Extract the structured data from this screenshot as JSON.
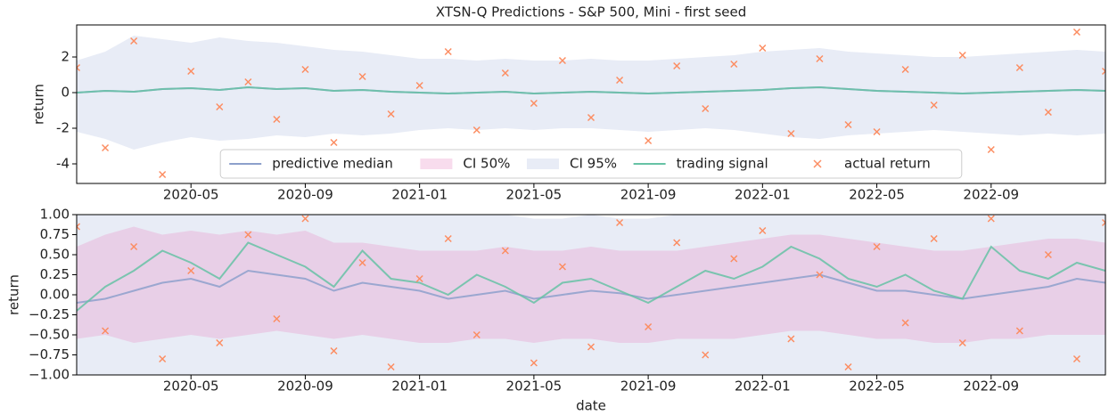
{
  "chart_data": [
    {
      "type": "line",
      "title": "XTSN-Q Predictions - S&P 500, Mini - first seed",
      "ylabel": "return",
      "x": [
        "2020-01",
        "2020-02",
        "2020-03",
        "2020-04",
        "2020-05",
        "2020-06",
        "2020-07",
        "2020-08",
        "2020-09",
        "2020-10",
        "2020-11",
        "2020-12",
        "2021-01",
        "2021-02",
        "2021-03",
        "2021-04",
        "2021-05",
        "2021-06",
        "2021-07",
        "2021-08",
        "2021-09",
        "2021-10",
        "2021-11",
        "2021-12",
        "2022-01",
        "2022-02",
        "2022-03",
        "2022-04",
        "2022-05",
        "2022-06",
        "2022-07",
        "2022-08",
        "2022-09",
        "2022-10",
        "2022-11",
        "2022-12",
        "2023-01"
      ],
      "xlim": [
        "2020-01",
        "2023-01"
      ],
      "xticks": [
        "2020-05",
        "2020-09",
        "2021-01",
        "2021-05",
        "2021-09",
        "2022-01",
        "2022-05",
        "2022-09"
      ],
      "ylim": [
        -5.1,
        3.8
      ],
      "yticks": [
        -4,
        -2,
        0,
        2
      ],
      "legend": "lower center",
      "series": [
        {
          "name": "predictive median",
          "type": "line",
          "color": "#8da0cb",
          "values": [
            0,
            0.1,
            0.05,
            0.2,
            0.25,
            0.15,
            0.3,
            0.2,
            0.25,
            0.1,
            0.15,
            0.05,
            0,
            -0.05,
            0,
            0.05,
            -0.05,
            0,
            0.05,
            0,
            -0.05,
            0,
            0.05,
            0.1,
            0.15,
            0.25,
            0.3,
            0.2,
            0.1,
            0.05,
            0,
            -0.05,
            0,
            0.05,
            0.1,
            0.15,
            0.1
          ]
        },
        {
          "name": "CI 50%",
          "type": "band",
          "color": "#e78ac3",
          "lower": [
            -0.6,
            -0.5,
            -0.7,
            -0.5,
            -0.4,
            -0.5,
            -0.4,
            -0.5,
            -0.4,
            -0.6,
            -0.5,
            -0.6,
            -0.7,
            -0.7,
            -0.6,
            -0.6,
            -0.7,
            -0.6,
            -0.6,
            -0.7,
            -0.7,
            -0.6,
            -0.6,
            -0.6,
            -0.5,
            -0.4,
            -0.4,
            -0.5,
            -0.6,
            -0.6,
            -0.7,
            -0.7,
            -0.6,
            -0.6,
            -0.5,
            -0.5,
            -0.5
          ],
          "upper": [
            0.7,
            0.8,
            0.9,
            0.8,
            0.9,
            0.8,
            0.9,
            0.8,
            0.9,
            0.7,
            0.7,
            0.6,
            0.6,
            0.6,
            0.6,
            0.7,
            0.6,
            0.6,
            0.7,
            0.6,
            0.6,
            0.6,
            0.7,
            0.7,
            0.8,
            0.9,
            0.9,
            0.8,
            0.7,
            0.7,
            0.6,
            0.6,
            0.7,
            0.7,
            0.8,
            0.8,
            0.7
          ]
        },
        {
          "name": "CI 95%",
          "type": "band",
          "color": "#e8ecf6",
          "lower": [
            -2.2,
            -2.6,
            -3.2,
            -2.8,
            -2.5,
            -2.7,
            -2.6,
            -2.4,
            -2.5,
            -2.3,
            -2.4,
            -2.3,
            -2.1,
            -2.0,
            -2.1,
            -2.0,
            -2.1,
            -2.0,
            -2.0,
            -2.1,
            -2.2,
            -2.1,
            -2.0,
            -2.1,
            -2.3,
            -2.5,
            -2.6,
            -2.4,
            -2.3,
            -2.2,
            -2.1,
            -2.2,
            -2.3,
            -2.4,
            -2.3,
            -2.4,
            -2.3
          ],
          "upper": [
            1.8,
            2.3,
            3.2,
            3.0,
            2.8,
            3.1,
            2.9,
            2.8,
            2.6,
            2.4,
            2.3,
            2.1,
            1.9,
            1.9,
            1.8,
            1.9,
            1.8,
            1.8,
            1.9,
            1.8,
            1.8,
            1.9,
            2.0,
            2.1,
            2.3,
            2.4,
            2.5,
            2.3,
            2.2,
            2.1,
            2.0,
            2.0,
            2.1,
            2.2,
            2.3,
            2.4,
            2.3
          ]
        },
        {
          "name": "trading signal",
          "type": "line",
          "color": "#66c2a5",
          "values": [
            0,
            0.1,
            0.05,
            0.2,
            0.25,
            0.15,
            0.3,
            0.2,
            0.25,
            0.1,
            0.15,
            0.05,
            0,
            -0.05,
            0,
            0.05,
            -0.05,
            0,
            0.05,
            0,
            -0.05,
            0,
            0.05,
            0.1,
            0.15,
            0.25,
            0.3,
            0.2,
            0.1,
            0.05,
            0,
            -0.05,
            0,
            0.05,
            0.1,
            0.15,
            0.1
          ]
        },
        {
          "name": "actual return",
          "type": "scatter",
          "color": "#fc8d62",
          "values": [
            1.4,
            -3.1,
            2.9,
            -4.6,
            1.2,
            -0.8,
            0.6,
            -1.5,
            1.3,
            -2.8,
            0.9,
            -1.2,
            0.4,
            2.3,
            -2.1,
            1.1,
            -0.6,
            1.8,
            -1.4,
            0.7,
            -2.7,
            1.5,
            -0.9,
            1.6,
            2.5,
            -2.3,
            1.9,
            -1.8,
            -2.2,
            1.3,
            -0.7,
            2.1,
            -3.2,
            1.4,
            -1.1,
            3.4,
            1.2
          ]
        }
      ]
    },
    {
      "type": "line",
      "ylabel": "return",
      "xlabel": "date",
      "x": [
        "2020-01",
        "2020-02",
        "2020-03",
        "2020-04",
        "2020-05",
        "2020-06",
        "2020-07",
        "2020-08",
        "2020-09",
        "2020-10",
        "2020-11",
        "2020-12",
        "2021-01",
        "2021-02",
        "2021-03",
        "2021-04",
        "2021-05",
        "2021-06",
        "2021-07",
        "2021-08",
        "2021-09",
        "2021-10",
        "2021-11",
        "2021-12",
        "2022-01",
        "2022-02",
        "2022-03",
        "2022-04",
        "2022-05",
        "2022-06",
        "2022-07",
        "2022-08",
        "2022-09",
        "2022-10",
        "2022-11",
        "2022-12",
        "2023-01"
      ],
      "xlim": [
        "2020-01",
        "2023-01"
      ],
      "xticks": [
        "2020-05",
        "2020-09",
        "2021-01",
        "2021-05",
        "2021-09",
        "2022-01",
        "2022-05",
        "2022-09"
      ],
      "ylim": [
        -1,
        1
      ],
      "yticks": [
        {
          "value": -1,
          "label": "−1.00"
        },
        {
          "value": -0.75,
          "label": "−0.75"
        },
        {
          "value": -0.5,
          "label": "−0.50"
        },
        {
          "value": -0.25,
          "label": "−0.25"
        },
        {
          "value": 0,
          "label": "0.00"
        },
        0.25,
        {
          "value": 0.5,
          "label": "0.50"
        },
        0.75,
        {
          "value": 1,
          "label": "1.00"
        }
      ],
      "series": [
        {
          "type": "band",
          "color": "#e8ecf6",
          "lower": [
            -1.2,
            -1.3,
            -1.5,
            -1.4,
            -1.3,
            -1.4,
            -1.3,
            -1.2,
            -1.3,
            -1.2,
            -1.2,
            -1.1,
            -1.1,
            -1.1,
            -1.1,
            -1.0,
            -1.1,
            -1.0,
            -1.0,
            -1.1,
            -1.1,
            -1.0,
            -1.1,
            -1.1,
            -1.2,
            -1.3,
            -1.3,
            -1.2,
            -1.2,
            -1.1,
            -1.1,
            -1.1,
            -1.2,
            -1.2,
            -1.2,
            -1.2,
            -1.2
          ],
          "upper": [
            1.0,
            1.2,
            1.5,
            1.4,
            1.3,
            1.4,
            1.3,
            1.2,
            1.3,
            1.2,
            1.2,
            1.1,
            1.0,
            1.0,
            1.0,
            1.0,
            0.95,
            0.95,
            1.0,
            0.95,
            0.95,
            1.0,
            1.0,
            1.1,
            1.2,
            1.3,
            1.3,
            1.2,
            1.1,
            1.1,
            1.0,
            1.0,
            1.1,
            1.1,
            1.2,
            1.2,
            1.2
          ]
        },
        {
          "type": "band",
          "color": "#e78ac3",
          "lower": [
            -0.55,
            -0.5,
            -0.6,
            -0.55,
            -0.5,
            -0.55,
            -0.5,
            -0.45,
            -0.5,
            -0.55,
            -0.5,
            -0.55,
            -0.6,
            -0.6,
            -0.55,
            -0.55,
            -0.6,
            -0.55,
            -0.55,
            -0.6,
            -0.6,
            -0.55,
            -0.55,
            -0.55,
            -0.5,
            -0.45,
            -0.45,
            -0.5,
            -0.55,
            -0.55,
            -0.6,
            -0.6,
            -0.55,
            -0.55,
            -0.5,
            -0.5,
            -0.5
          ],
          "upper": [
            0.6,
            0.75,
            0.85,
            0.75,
            0.8,
            0.75,
            0.8,
            0.75,
            0.8,
            0.65,
            0.65,
            0.6,
            0.55,
            0.55,
            0.55,
            0.6,
            0.55,
            0.55,
            0.6,
            0.55,
            0.55,
            0.55,
            0.6,
            0.65,
            0.7,
            0.75,
            0.75,
            0.7,
            0.65,
            0.6,
            0.55,
            0.55,
            0.6,
            0.65,
            0.7,
            0.7,
            0.65
          ]
        },
        {
          "type": "line",
          "color": "#8da0cb",
          "values": [
            -0.1,
            -0.05,
            0.05,
            0.15,
            0.2,
            0.1,
            0.3,
            0.25,
            0.2,
            0.05,
            0.15,
            0.1,
            0.05,
            -0.05,
            0,
            0.05,
            -0.05,
            0,
            0.05,
            0.02,
            -0.05,
            0,
            0.05,
            0.1,
            0.15,
            0.2,
            0.25,
            0.15,
            0.05,
            0.05,
            0,
            -0.05,
            0,
            0.05,
            0.1,
            0.2,
            0.15
          ]
        },
        {
          "type": "line",
          "color": "#66c2a5",
          "values": [
            -0.2,
            0.1,
            0.3,
            0.55,
            0.4,
            0.2,
            0.65,
            0.5,
            0.35,
            0.1,
            0.55,
            0.2,
            0.15,
            0,
            0.25,
            0.1,
            -0.1,
            0.15,
            0.2,
            0.05,
            -0.1,
            0.1,
            0.3,
            0.2,
            0.35,
            0.6,
            0.45,
            0.2,
            0.1,
            0.25,
            0.05,
            -0.05,
            0.6,
            0.3,
            0.2,
            0.4,
            0.3
          ]
        },
        {
          "type": "scatter",
          "color": "#fc8d62",
          "values": [
            0.85,
            -0.45,
            0.6,
            -0.8,
            0.3,
            -0.6,
            0.75,
            -0.3,
            0.95,
            -0.7,
            0.4,
            -0.9,
            0.2,
            0.7,
            -0.5,
            0.55,
            -0.85,
            0.35,
            -0.65,
            0.9,
            -0.4,
            0.65,
            -0.75,
            0.45,
            0.8,
            -0.55,
            0.25,
            -0.9,
            0.6,
            -0.35,
            0.7,
            -0.6,
            0.95,
            -0.45,
            0.5,
            -0.8,
            0.9
          ]
        }
      ]
    }
  ]
}
